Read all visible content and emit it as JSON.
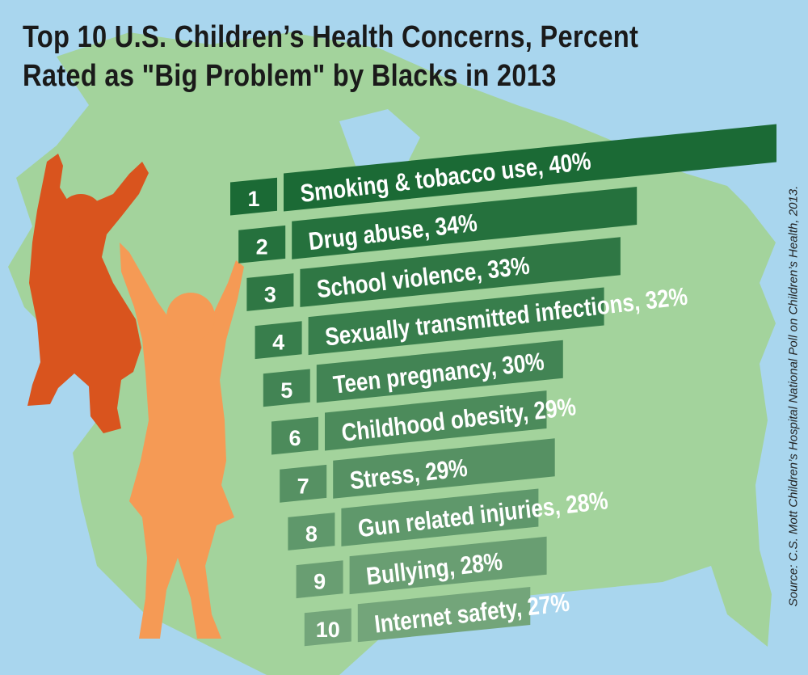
{
  "header": {
    "title_line1": "Top 10 U.S. Children’s Health Concerns, Percent",
    "title_line2": "Rated as \"Big Problem\" by Blacks in 2013"
  },
  "source": "Source: C.S. Mott Children’s Hospital National Poll on Children’s Health, 2013.",
  "colors": {
    "sky": "#a9d6ee",
    "land": "#a3d39c",
    "bar_dark": "#1b6a35",
    "bar_light": "#73a57a",
    "figure_left": "#d9541e",
    "figure_right": "#f59a55",
    "text_light": "#ffffff",
    "title_text": "#1a1a1a"
  },
  "chart_data": {
    "type": "bar",
    "title": "Top 10 U.S. Children’s Health Concerns, Percent Rated as \"Big Problem\" by Blacks in 2013",
    "ranks": [
      "1",
      "2",
      "3",
      "4",
      "5",
      "6",
      "7",
      "8",
      "9",
      "10"
    ],
    "labels": [
      "Smoking & tobacco use, 40%",
      "Drug abuse, 34%",
      "School violence, 33%",
      "Sexually transmitted infections, 32%",
      "Teen pregnancy, 30%",
      "Childhood obesity, 29%",
      "Stress, 29%",
      "Gun related injuries, 28%",
      "Bullying, 28%",
      "Internet safety, 27%"
    ],
    "categories": [
      "Smoking & tobacco use",
      "Drug abuse",
      "School violence",
      "Sexually transmitted infections",
      "Teen pregnancy",
      "Childhood obesity",
      "Stress",
      "Gun related injuries",
      "Bullying",
      "Internet safety"
    ],
    "values": [
      40,
      34,
      33,
      32,
      30,
      29,
      29,
      28,
      28,
      27
    ],
    "unit": "%"
  }
}
